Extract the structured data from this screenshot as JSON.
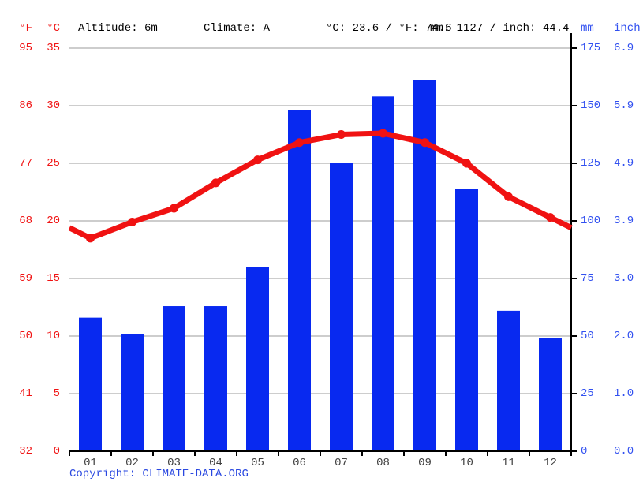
{
  "header": {
    "f_label": "°F",
    "c_label": "°C",
    "altitude": "Altitude: 6m",
    "climate": "Climate: A",
    "temp_summary": "°C: 23.6 / °F: 74.6",
    "precip_summary": "mm: 1127 / inch: 44.4",
    "mm_label": "mm",
    "inch_label": "inch"
  },
  "axes": {
    "left_f": [
      "95",
      "86",
      "77",
      "68",
      "59",
      "50",
      "41",
      "32"
    ],
    "left_c": [
      "35",
      "30",
      "25",
      "20",
      "15",
      "10",
      "5",
      "0"
    ],
    "right_mm": [
      "175",
      "150",
      "125",
      "100",
      "75",
      "50",
      "25",
      "0"
    ],
    "right_inch": [
      "6.9",
      "5.9",
      "4.9",
      "3.9",
      "3.0",
      "2.0",
      "1.0",
      "0.0"
    ]
  },
  "chart_data": {
    "type": "bar+line",
    "categories": [
      "01",
      "02",
      "03",
      "04",
      "05",
      "06",
      "07",
      "08",
      "09",
      "10",
      "11",
      "12"
    ],
    "series": [
      {
        "name": "precipitation",
        "type": "bar",
        "unit": "mm",
        "values": [
          58,
          51,
          63,
          63,
          80,
          148,
          125,
          154,
          161,
          114,
          61,
          49
        ]
      },
      {
        "name": "temperature",
        "type": "line",
        "unit": "°C",
        "values": [
          18.5,
          19.9,
          21.1,
          23.3,
          25.3,
          26.8,
          27.5,
          27.6,
          26.8,
          25.0,
          22.1,
          20.3
        ]
      }
    ],
    "ylim_c": [
      0,
      35
    ],
    "ylim_mm": [
      0,
      175
    ],
    "grid": true,
    "legend_position": "none",
    "annotations": {
      "avg_temp_c": 23.6,
      "avg_temp_f": 74.6,
      "total_precip_mm": 1127,
      "total_precip_inch": 44.4
    }
  },
  "colors": {
    "bar_blue": "#0829f0",
    "line_red": "#f01212",
    "label_red": "#f01212",
    "label_blue": "#3150f0",
    "copyright_blue": "#2a48e0",
    "grid": "#cdcdcd",
    "axis": "#000000",
    "month_label": "#404040"
  },
  "footer": {
    "copyright_label": "Copyright: ",
    "link": "CLIMATE-DATA.ORG"
  }
}
